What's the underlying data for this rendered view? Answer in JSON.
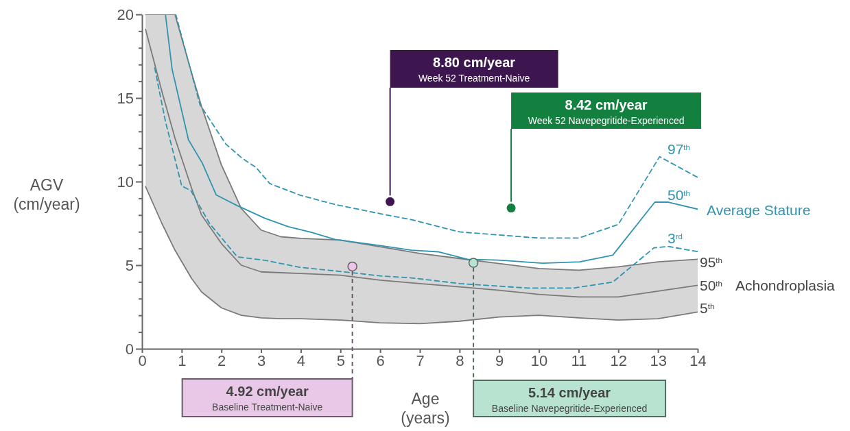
{
  "chart_data": {
    "type": "line",
    "xlabel": "Age\n(years)",
    "ylabel": "AGV\n(cm/year)",
    "xlim": [
      0,
      14
    ],
    "xticks": [
      0,
      1,
      2,
      3,
      4,
      5,
      6,
      7,
      8,
      9,
      10,
      11,
      12,
      13,
      14
    ],
    "ylim": [
      0,
      20
    ],
    "yticks": [
      0,
      {
        "value": 1,
        "label": null
      },
      {
        "value": 2,
        "label": null
      },
      {
        "value": 3,
        "label": null
      },
      {
        "value": 4,
        "label": null
      },
      5,
      {
        "value": 6,
        "label": null
      },
      {
        "value": 7,
        "label": null
      },
      {
        "value": 8,
        "label": null
      },
      {
        "value": 9,
        "label": null
      },
      10,
      {
        "value": 11,
        "label": null
      },
      {
        "value": 12,
        "label": null
      },
      {
        "value": 13,
        "label": null
      },
      {
        "value": 14,
        "label": null
      },
      15,
      {
        "value": 16,
        "label": null
      },
      {
        "value": 17,
        "label": null
      },
      {
        "value": 18,
        "label": null
      },
      {
        "value": 19,
        "label": null
      },
      20
    ],
    "grid": false,
    "legend": false,
    "series": [
      {
        "name": "50$^{th}$",
        "color": "#7a7a7a",
        "line_style": "solid",
        "x": [
          0.09,
          0.5,
          0.83,
          1.25,
          1.5,
          2,
          2.5,
          3,
          3.5,
          4,
          5,
          6,
          7,
          8,
          9,
          10,
          11,
          12,
          13,
          14
        ],
        "values": [
          19.1,
          15.4,
          12.6,
          9.6,
          8.0,
          6.3,
          5.0,
          4.6,
          4.55,
          4.5,
          4.4,
          4.1,
          3.9,
          3.7,
          3.5,
          3.25,
          3.1,
          3.1,
          3.45,
          3.8
        ],
        "lower": [
          9.7,
          7.5,
          5.9,
          4.2,
          3.4,
          2.45,
          2.0,
          1.85,
          1.8,
          1.8,
          1.72,
          1.55,
          1.5,
          1.65,
          1.9,
          2.0,
          1.85,
          1.72,
          1.8,
          2.2
        ],
        "upper": [
          20,
          20,
          20,
          16.5,
          14.5,
          11,
          8.4,
          7.1,
          6.7,
          6.6,
          6.5,
          6.1,
          5.7,
          5.4,
          5.1,
          4.8,
          4.7,
          4.9,
          5.2,
          5.35
        ]
      },
      {
        "name": "95$^{th}$",
        "color": "#7a7a7a",
        "line_style": "solid",
        "x": [
          0.09,
          0.5,
          0.83,
          1.25,
          1.5,
          2,
          2.5,
          3,
          3.5,
          4,
          5,
          6,
          7,
          8,
          9,
          10,
          11,
          12,
          13,
          14
        ],
        "values": [
          20,
          20,
          20,
          16.5,
          14.5,
          11,
          8.4,
          7.1,
          6.7,
          6.6,
          6.5,
          6.1,
          5.7,
          5.4,
          5.1,
          4.8,
          4.7,
          4.9,
          5.2,
          5.35
        ]
      },
      {
        "name": "5$^{th}$",
        "color": "#7a7a7a",
        "line_style": "solid",
        "x": [
          0.09,
          0.5,
          0.83,
          1.25,
          1.5,
          2,
          2.5,
          3,
          3.5,
          4,
          5,
          6,
          7,
          8,
          9,
          10,
          11,
          12,
          13,
          14
        ],
        "values": [
          9.7,
          7.5,
          5.9,
          4.2,
          3.4,
          2.45,
          2.0,
          1.85,
          1.8,
          1.8,
          1.72,
          1.55,
          1.5,
          1.65,
          1.9,
          2.0,
          1.85,
          1.72,
          1.8,
          2.2
        ]
      },
      {
        "name": "97$^{th}$",
        "color": "#2e94b0",
        "line_style": "dashed",
        "x": [
          0.85,
          1.46,
          2.11,
          2.52,
          2.87,
          3.22,
          3.98,
          4.86,
          6,
          6.79,
          8,
          10,
          11,
          12,
          13.04,
          14
        ],
        "values": [
          20,
          14.6,
          12.25,
          11.4,
          10.85,
          9.88,
          9.19,
          8.63,
          8.08,
          7.72,
          6.99,
          6.62,
          6.62,
          7.44,
          11.49,
          10.25
        ]
      },
      {
        "name": "50$^{th}$",
        "color": "#2e94b0",
        "line_style": "solid",
        "x": [
          0.59,
          0.76,
          1.17,
          1.52,
          1.87,
          2.4,
          3.1,
          3.69,
          4.27,
          4.86,
          6,
          6.79,
          7.46,
          8.2,
          8.98,
          10.1,
          11.03,
          11.86,
          12.92,
          13.26,
          14
        ],
        "values": [
          20,
          16.7,
          12.5,
          11.1,
          9.2,
          8.56,
          7.8,
          7.3,
          6.96,
          6.54,
          6.17,
          5.9,
          5.8,
          5.35,
          5.3,
          5.12,
          5.2,
          5.6,
          8.77,
          8.77,
          8.35
        ]
      },
      {
        "name": "3$^{rd}$",
        "color": "#2e94b0",
        "line_style": "dashed",
        "x": [
          0.32,
          0.59,
          1.0,
          1.23,
          1.7,
          2.4,
          3.1,
          3.98,
          4.86,
          6,
          6.79,
          8,
          9.73,
          10.87,
          11.86,
          12.9,
          13.26,
          14
        ],
        "values": [
          16.8,
          13.6,
          9.74,
          9.46,
          7.5,
          5.5,
          5.29,
          4.87,
          4.66,
          4.36,
          4.24,
          3.9,
          3.63,
          3.63,
          3.99,
          6.04,
          6.12,
          5.81
        ]
      },
      {
        "type": "scatter",
        "color": "#3d1650",
        "x": [
          6.25
        ],
        "values": [
          8.8
        ]
      },
      {
        "type": "scatter",
        "color": "#138040",
        "x": [
          9.3
        ],
        "values": [
          8.42
        ]
      },
      {
        "type": "scatter",
        "color": "#e8c8e6",
        "x": [
          5.3
        ],
        "values": [
          4.92
        ]
      },
      {
        "type": "scatter",
        "color": "#b8e3d0",
        "x": [
          8.35
        ],
        "values": [
          5.14
        ]
      }
    ],
    "annotations": [
      "8.80 cm/year\nWeek 52 Treatment-Naive",
      "8.42 cm/year\nWeek 52 Navepegritide-Experienced",
      "4.92 cm/year\nBaseline Treatment-Naive",
      "5.14 cm/year\nBaseline Navepegritide-Experienced",
      "Average Stature",
      "Achondroplasia"
    ]
  }
}
